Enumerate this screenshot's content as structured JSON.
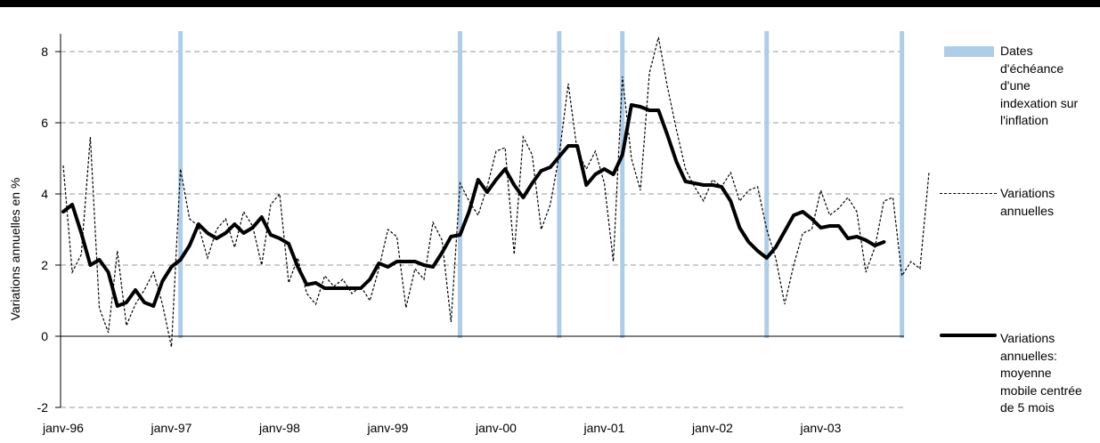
{
  "chart_data": {
    "type": "line",
    "ylabel": "Variations annuelles en %",
    "ylim": [
      -2,
      8.5
    ],
    "yticks": [
      -2,
      0,
      2,
      4,
      6,
      8
    ],
    "xticks": [
      "janv-96",
      "janv-97",
      "janv-98",
      "janv-99",
      "janv-00",
      "janv-01",
      "janv-02",
      "janv-03"
    ],
    "grid": "horizontal dashed",
    "legend_position": "right",
    "indexation_dates": [
      "févr-97",
      "sept-99",
      "août-00",
      "mars-01",
      "juil-02",
      "oct-03"
    ],
    "x_start": "janv-96",
    "x_step": "1 mois",
    "series": [
      {
        "name": "Variations annuelles",
        "style": "dotted",
        "color": "#000000",
        "values": [
          4.8,
          1.8,
          2.3,
          5.6,
          0.8,
          0.1,
          2.4,
          0.3,
          0.9,
          1.3,
          1.8,
          0.9,
          -0.3,
          4.7,
          3.3,
          3.1,
          2.2,
          3.0,
          3.3,
          2.5,
          3.5,
          3.1,
          2.0,
          3.7,
          4.0,
          1.5,
          2.2,
          1.2,
          0.9,
          1.7,
          1.4,
          1.6,
          1.2,
          1.4,
          1.0,
          1.9,
          3.0,
          2.8,
          0.8,
          1.9,
          1.6,
          3.2,
          2.7,
          0.4,
          4.3,
          3.8,
          3.4,
          4.2,
          5.2,
          5.3,
          2.3,
          5.6,
          5.1,
          3.0,
          3.7,
          5.1,
          7.1,
          5.2,
          4.7,
          5.2,
          4.3,
          2.1,
          7.3,
          5.0,
          4.1,
          7.4,
          8.4,
          7.0,
          5.8,
          4.7,
          4.2,
          3.8,
          4.4,
          4.2,
          4.6,
          3.8,
          4.1,
          4.2,
          3.0,
          2.2,
          0.9,
          2.0,
          2.9,
          3.0,
          4.1,
          3.4,
          3.6,
          3.9,
          3.5,
          1.8,
          2.5,
          3.8,
          3.9,
          1.7,
          2.1,
          1.9,
          4.6
        ]
      },
      {
        "name": "Variations annuelles: moyenne mobile centrée de 5 mois",
        "style": "solid-thick",
        "color": "#000000",
        "values": [
          3.5,
          3.7,
          2.9,
          2.0,
          2.15,
          1.8,
          0.85,
          0.95,
          1.3,
          0.95,
          0.85,
          1.55,
          1.95,
          2.15,
          2.55,
          3.15,
          2.9,
          2.75,
          2.9,
          3.15,
          2.9,
          3.05,
          3.35,
          2.85,
          2.75,
          2.6,
          1.95,
          1.45,
          1.5,
          1.35,
          1.35,
          1.35,
          1.35,
          1.35,
          1.6,
          2.05,
          1.95,
          2.1,
          2.1,
          2.1,
          2.0,
          1.95,
          2.35,
          2.8,
          2.85,
          3.5,
          4.4,
          4.05,
          4.4,
          4.7,
          4.25,
          3.9,
          4.3,
          4.65,
          4.75,
          5.05,
          5.35,
          5.35,
          4.25,
          4.55,
          4.7,
          4.55,
          5.1,
          6.5,
          6.45,
          6.35,
          6.35,
          5.65,
          4.9,
          4.35,
          4.3,
          4.25,
          4.25,
          4.2,
          3.8,
          3.05,
          2.65,
          2.4,
          2.2,
          2.5,
          2.95,
          3.4,
          3.5,
          3.3,
          3.05,
          3.1,
          3.1,
          2.75,
          2.8,
          2.7,
          2.55,
          2.65
        ]
      }
    ]
  },
  "legend": {
    "bars_label": "Dates\nd'échéance\nd'une\nindexation sur\nl'inflation",
    "dotted_label": "Variations\nannuelles",
    "thick_label": "Variations\nannuelles:\nmoyenne\nmobile centrée\nde 5 mois"
  },
  "colors": {
    "indexation_bar": "#aecde9",
    "line": "#000000",
    "grid": "#999999"
  }
}
